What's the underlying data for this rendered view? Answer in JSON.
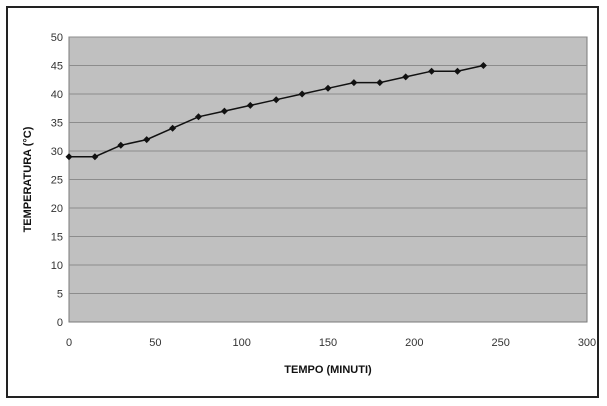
{
  "chart_data": {
    "type": "line",
    "title": "",
    "xlabel": "TEMPO (MINUTI)",
    "ylabel": "TEMPERATURA (°C)",
    "xlim": [
      0,
      300
    ],
    "ylim": [
      0,
      50
    ],
    "x_ticks": [
      0,
      50,
      100,
      150,
      200,
      250,
      300
    ],
    "y_ticks": [
      0,
      5,
      10,
      15,
      20,
      25,
      30,
      35,
      40,
      45,
      50
    ],
    "grid": true,
    "legend": "none",
    "colors": {
      "plot_bg": "#c0c0c0",
      "grid": "#8c8c8c",
      "line": "#111111"
    },
    "series": [
      {
        "x": [
          0,
          15,
          30,
          45,
          60,
          75,
          90,
          105,
          120,
          135,
          150,
          165,
          180,
          195,
          210,
          225,
          240
        ],
        "y": [
          29,
          29,
          31,
          32,
          34,
          36,
          37,
          38,
          39,
          40,
          41,
          42,
          42,
          43,
          44,
          44,
          45
        ]
      }
    ]
  }
}
